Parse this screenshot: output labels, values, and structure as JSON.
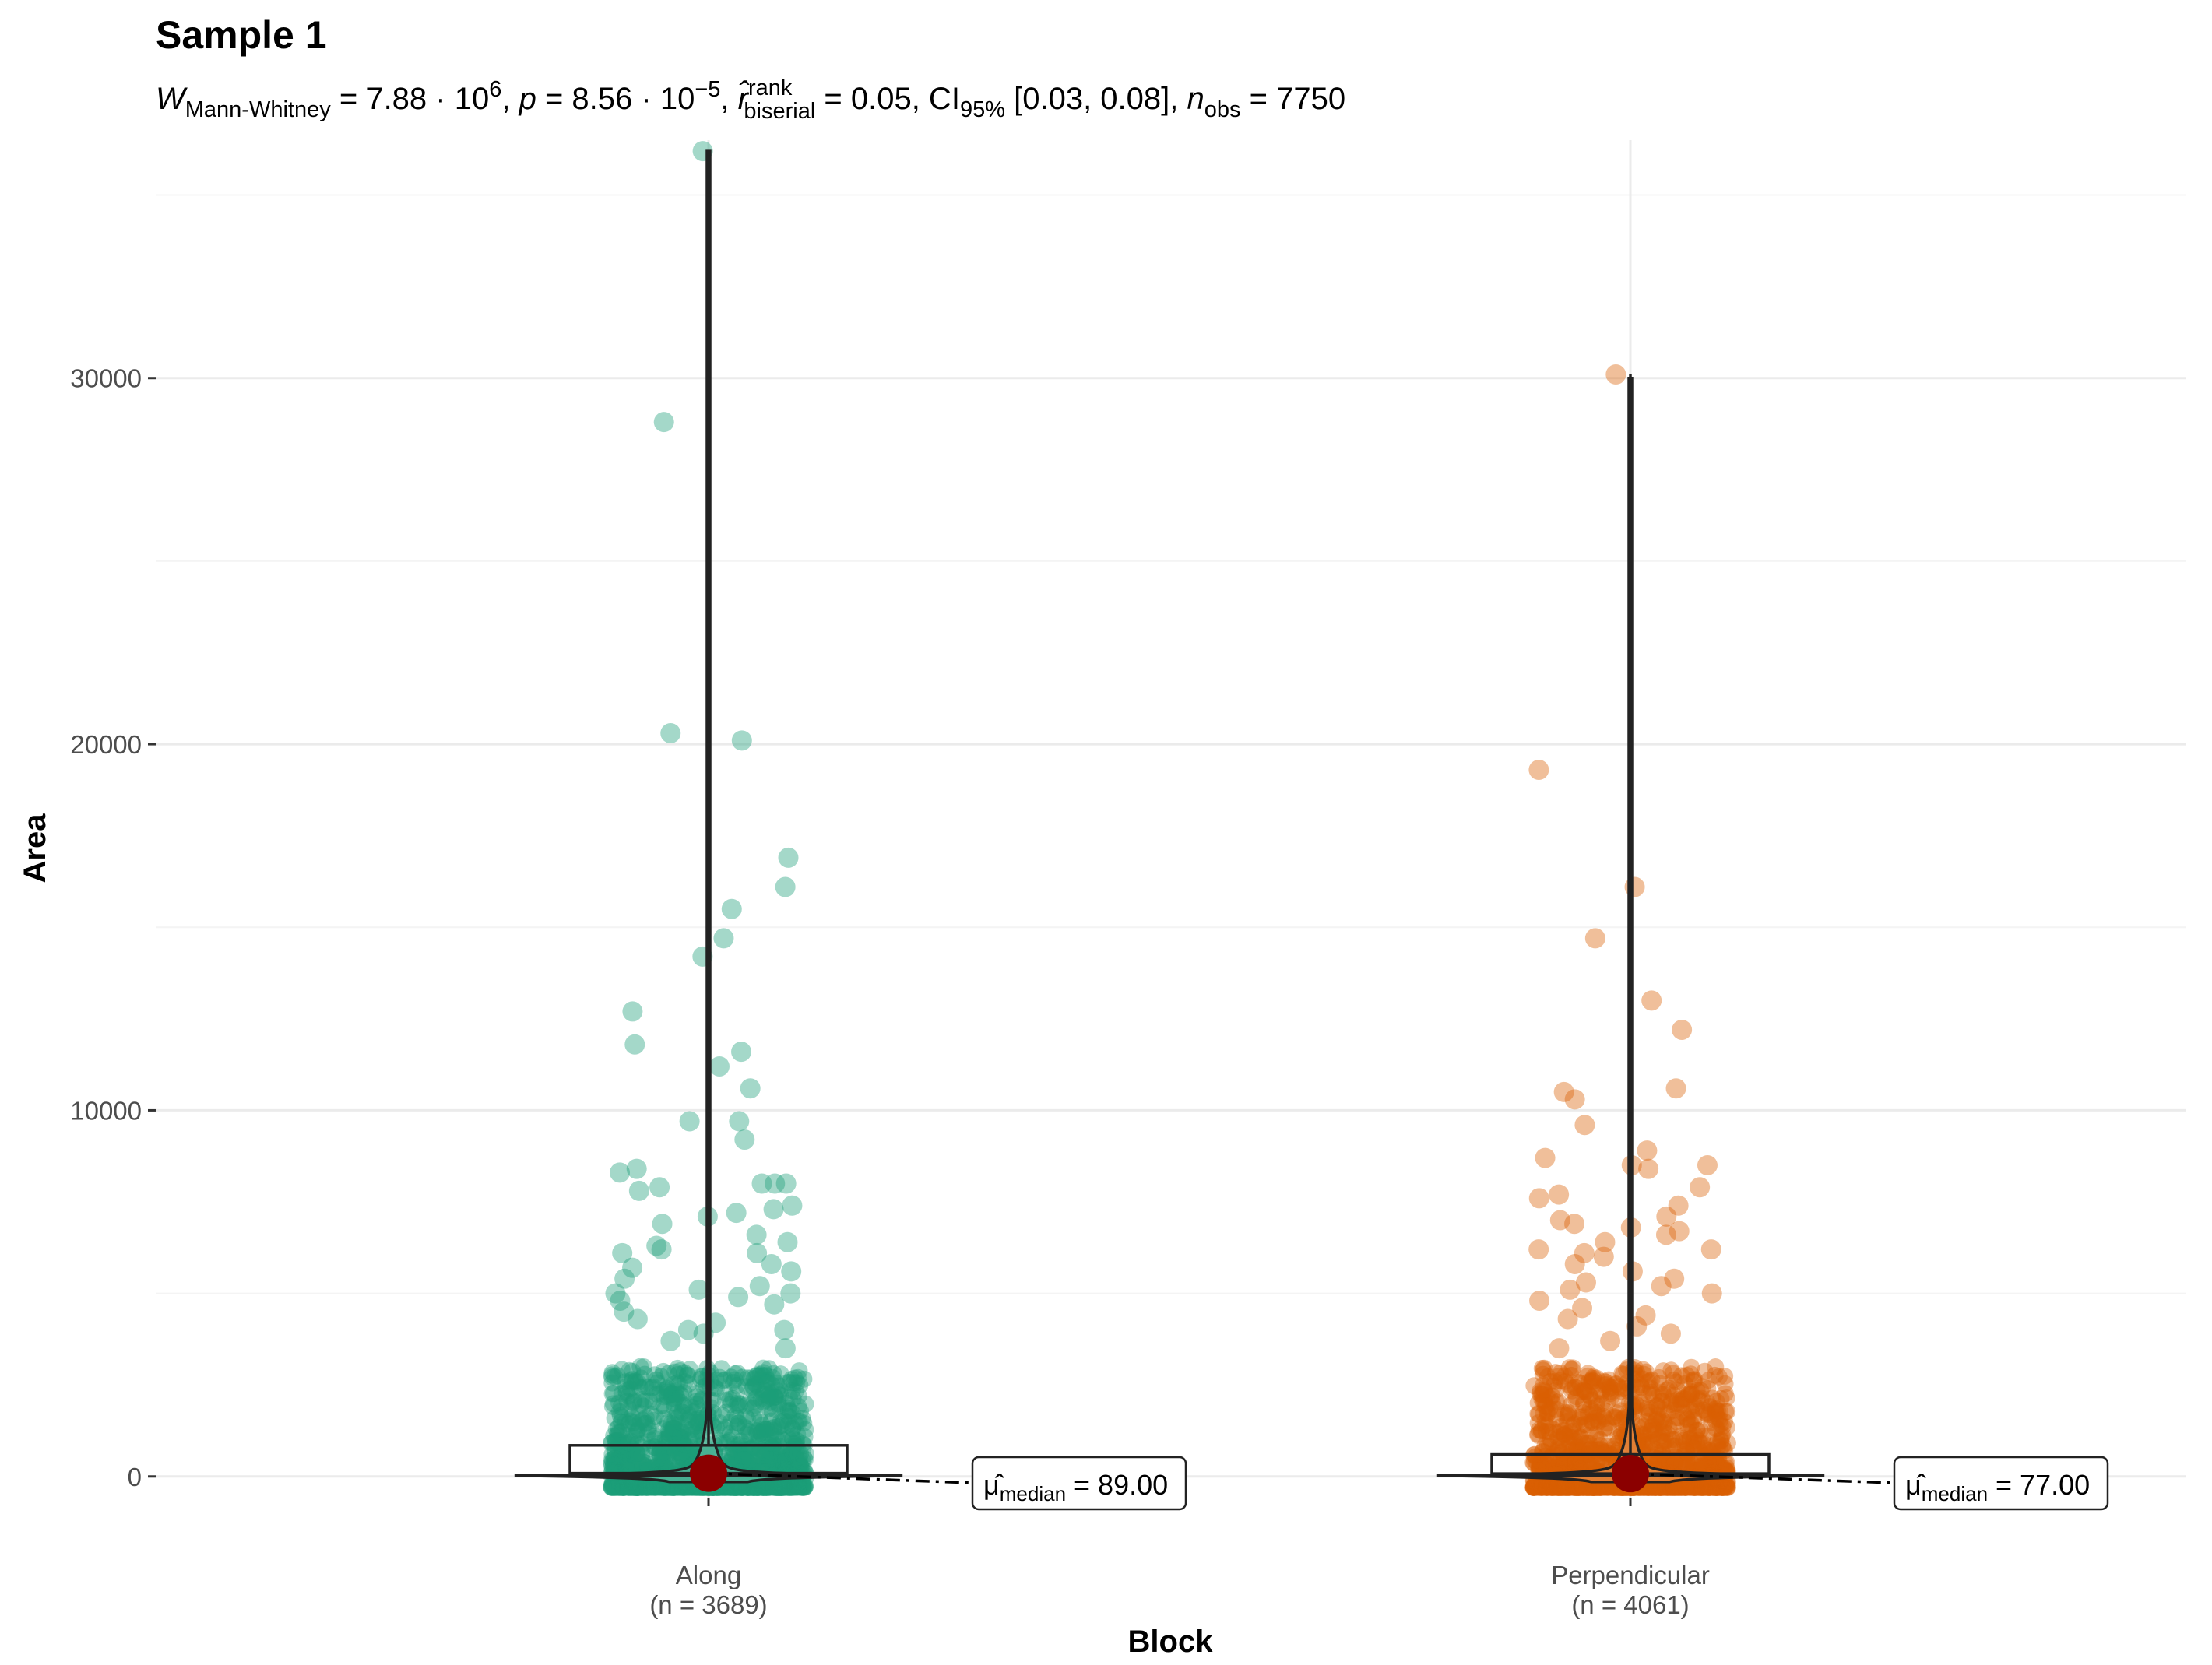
{
  "chart_data": {
    "type": "violin-box-scatter",
    "title": "Sample 1",
    "subtitle": {
      "W_label": "W",
      "W_sub": "Mann-Whitney",
      "W_eq": " = 7.88 · 10",
      "W_exp": "6",
      "sep1": ", ",
      "p_label": "p",
      "p_eq": " = 8.56 · 10",
      "p_exp": "−5",
      "sep2": ", ",
      "r_label": "r̂",
      "r_sup": "rank",
      "r_sub": "biserial",
      "r_eq": " = 0.05, CI",
      "ci_sub": "95%",
      "ci_val": " [0.03, 0.08], ",
      "n_label": "n",
      "n_sub": "obs",
      "n_eq": " = 7750"
    },
    "xlabel": "Block",
    "ylabel": "Area",
    "ylim": [
      -600,
      36500
    ],
    "yticks": [
      0,
      10000,
      20000,
      30000
    ],
    "ytick_labels": [
      "0",
      "10000",
      "20000",
      "30000"
    ],
    "categories": [
      "Along",
      "Perpendicular"
    ],
    "category_counts": [
      "(n = 3689)",
      "(n = 4061)"
    ],
    "series": [
      {
        "name": "Along",
        "color": "#1b9e77",
        "n": 3689,
        "median": 89.0,
        "box": {
          "q1": 20,
          "median": 89,
          "q3": 850
        },
        "max": 36200,
        "median_label_prefix": "μ̂",
        "median_label_sub": "median",
        "median_label_value": " = 89.00",
        "outliers": [
          36200,
          28800,
          20300,
          20100,
          16900,
          16100,
          15500,
          14700,
          14200,
          12700,
          11800,
          11600,
          11200,
          10600,
          9700,
          9700,
          9200,
          8400,
          8300,
          8000,
          8000,
          8000,
          7900,
          7800,
          7400,
          7300,
          7200,
          7100,
          6900,
          6600,
          6400,
          6300,
          6200,
          6100,
          6100,
          5800,
          5700,
          5600,
          5400,
          5200,
          5100,
          5000,
          5000,
          4900,
          4800,
          4700,
          4500,
          4300,
          4200,
          4000,
          4000,
          3900,
          3700,
          3500
        ]
      },
      {
        "name": "Perpendicular",
        "color": "#d95f02",
        "n": 4061,
        "median": 77.0,
        "box": {
          "q1": 15,
          "median": 77,
          "q3": 600
        },
        "max": 30100,
        "median_label_prefix": "μ̂",
        "median_label_sub": "median",
        "median_label_value": " = 77.00",
        "outliers": [
          30100,
          19300,
          16100,
          14700,
          13000,
          12200,
          10600,
          10500,
          10300,
          9600,
          8900,
          8700,
          8500,
          8500,
          8400,
          7900,
          7700,
          7600,
          7400,
          7100,
          7000,
          6900,
          6800,
          6700,
          6600,
          6400,
          6200,
          6200,
          6100,
          6000,
          5800,
          5600,
          5400,
          5300,
          5200,
          5100,
          5000,
          4800,
          4600,
          4400,
          4300,
          4100,
          3900,
          3700,
          3500
        ]
      }
    ],
    "colors": {
      "median_dot": "#8b0000",
      "grid": "#ebebeb",
      "line": "#222222"
    }
  }
}
